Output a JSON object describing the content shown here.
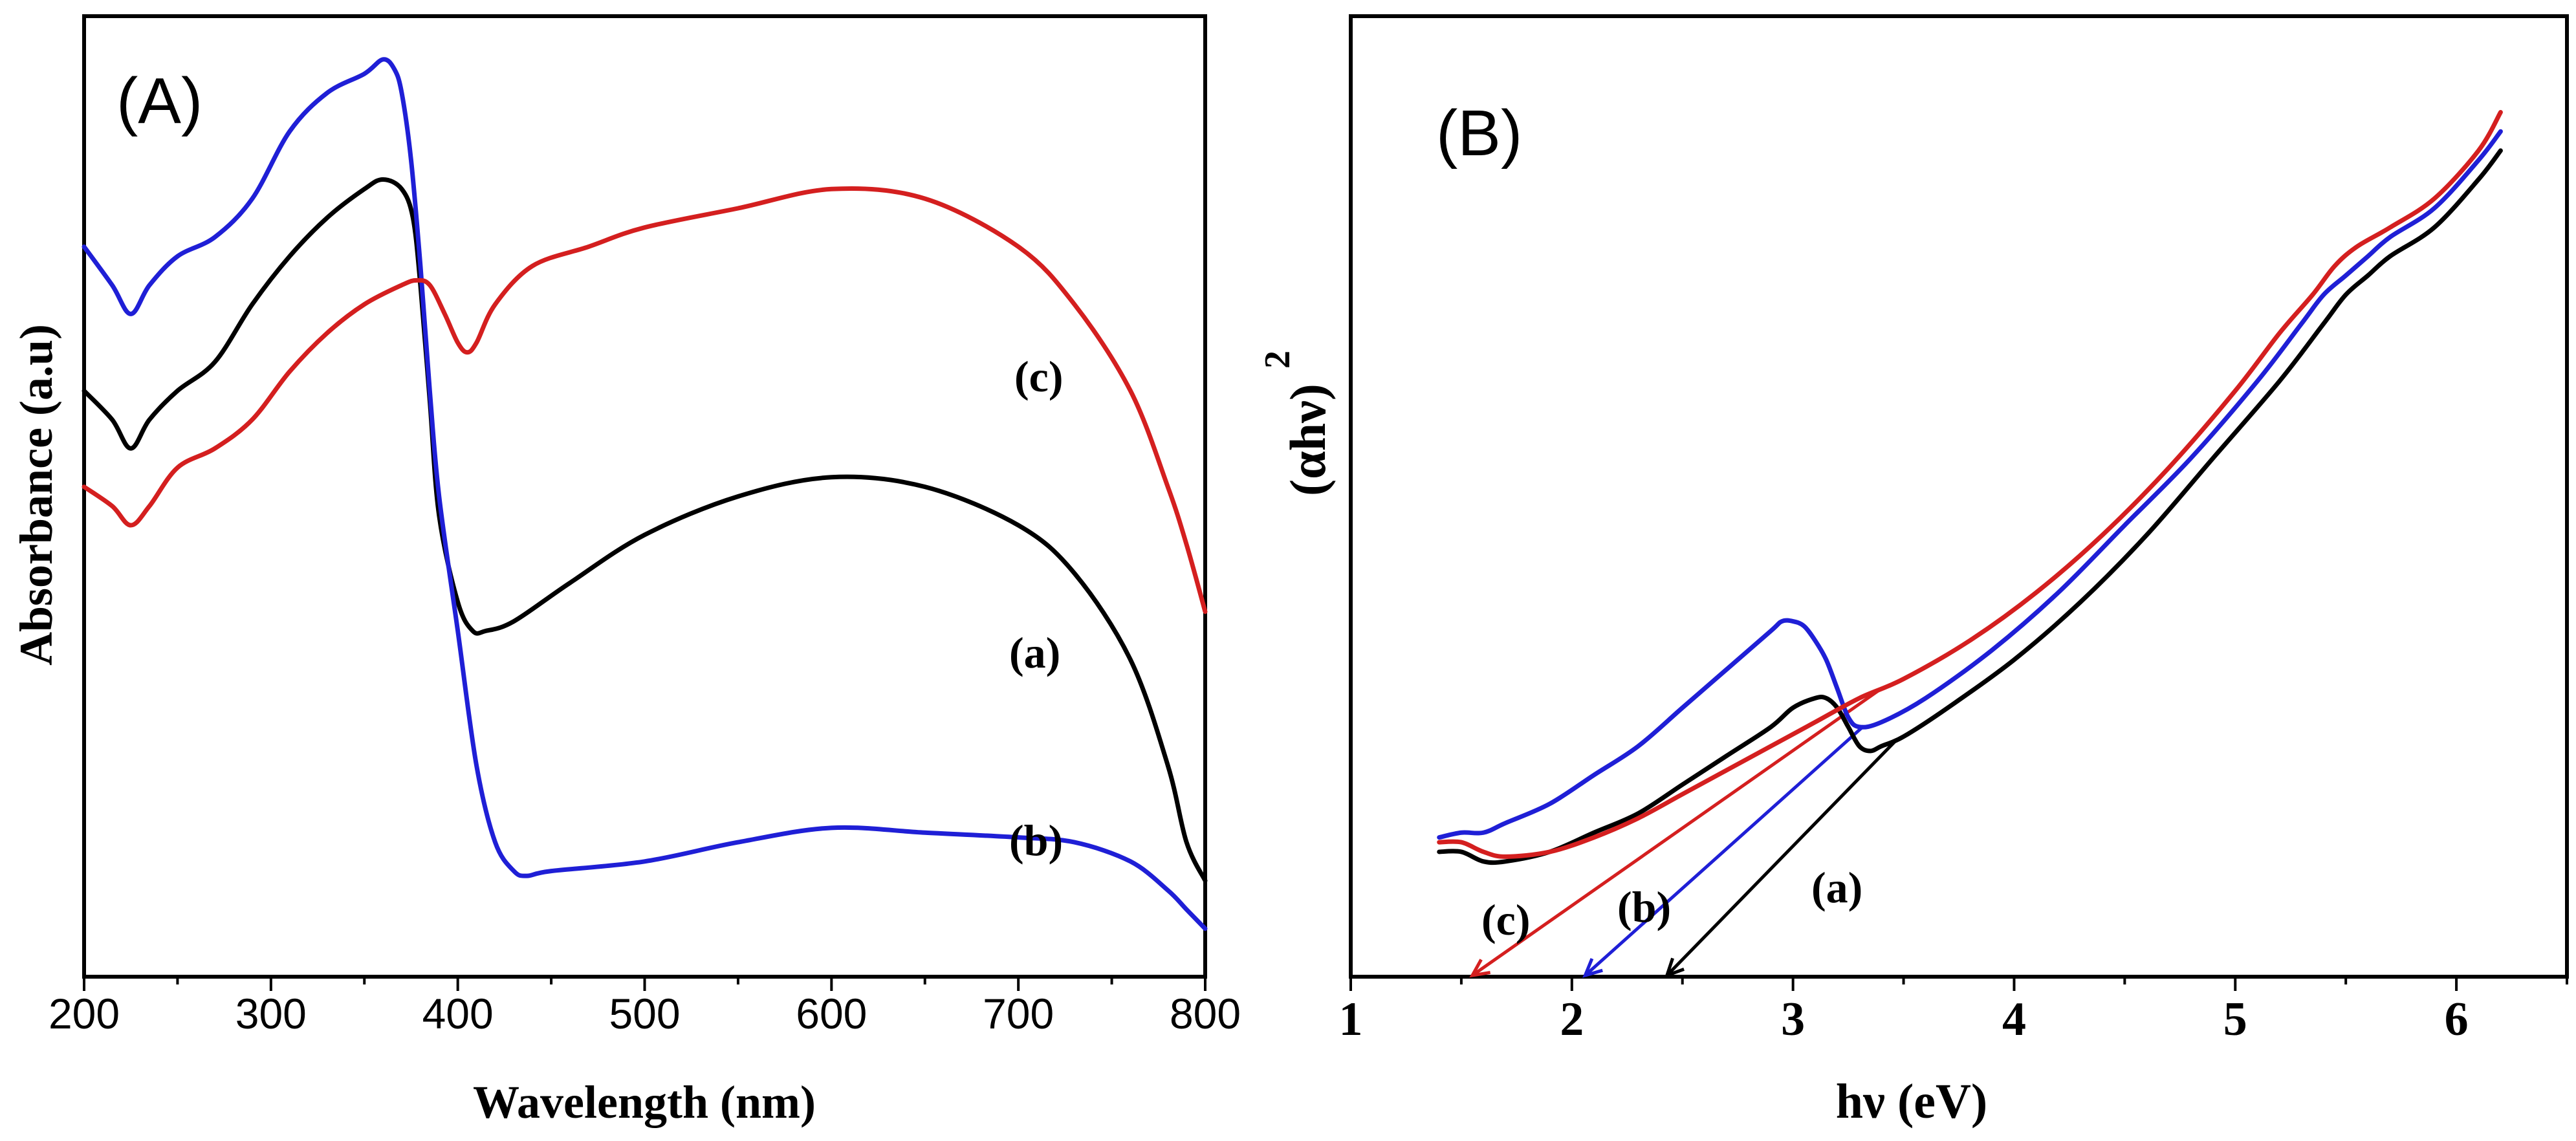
{
  "chart_data": [
    {
      "panel": "(A)",
      "type": "line",
      "xlabel": "Wavelength (nm)",
      "ylabel": "Absorbance (a.u)",
      "xlim": [
        200,
        800
      ],
      "ylim": [
        0,
        1
      ],
      "xticks": [
        "200",
        "300",
        "400",
        "500",
        "600",
        "700",
        "800"
      ],
      "series": [
        {
          "name": "(a)",
          "color": "#000000",
          "x": [
            200,
            215,
            225,
            235,
            250,
            270,
            290,
            310,
            330,
            350,
            360,
            370,
            376,
            380,
            385,
            390,
            400,
            408,
            415,
            430,
            460,
            500,
            550,
            600,
            650,
            700,
            730,
            760,
            780,
            790,
            800
          ],
          "y": [
            0.61,
            0.58,
            0.55,
            0.58,
            0.61,
            0.64,
            0.7,
            0.75,
            0.79,
            0.82,
            0.83,
            0.82,
            0.79,
            0.72,
            0.6,
            0.48,
            0.39,
            0.36,
            0.36,
            0.37,
            0.41,
            0.46,
            0.5,
            0.52,
            0.51,
            0.47,
            0.42,
            0.33,
            0.22,
            0.14,
            0.1
          ]
        },
        {
          "name": "(b)",
          "color": "#1f1fd6",
          "x": [
            200,
            215,
            225,
            235,
            250,
            270,
            290,
            310,
            330,
            350,
            360,
            366,
            370,
            375,
            380,
            385,
            390,
            400,
            410,
            420,
            430,
            437,
            450,
            500,
            550,
            600,
            650,
            700,
            730,
            760,
            780,
            790,
            800
          ],
          "y": [
            0.76,
            0.72,
            0.69,
            0.72,
            0.75,
            0.77,
            0.81,
            0.88,
            0.92,
            0.94,
            0.955,
            0.945,
            0.92,
            0.85,
            0.74,
            0.61,
            0.5,
            0.36,
            0.22,
            0.14,
            0.11,
            0.105,
            0.11,
            0.12,
            0.14,
            0.155,
            0.15,
            0.145,
            0.14,
            0.12,
            0.09,
            0.07,
            0.05
          ]
        },
        {
          "name": "(c)",
          "color": "#d41f1f",
          "x": [
            200,
            215,
            225,
            235,
            250,
            270,
            290,
            310,
            330,
            350,
            370,
            378,
            385,
            393,
            400,
            405,
            410,
            420,
            440,
            470,
            500,
            550,
            600,
            650,
            700,
            730,
            760,
            780,
            790,
            800
          ],
          "y": [
            0.51,
            0.49,
            0.47,
            0.49,
            0.53,
            0.55,
            0.58,
            0.63,
            0.67,
            0.7,
            0.72,
            0.725,
            0.72,
            0.69,
            0.66,
            0.65,
            0.66,
            0.7,
            0.74,
            0.76,
            0.78,
            0.8,
            0.82,
            0.81,
            0.76,
            0.7,
            0.61,
            0.51,
            0.45,
            0.38
          ]
        }
      ]
    },
    {
      "panel": "(B)",
      "type": "line",
      "xlabel": "hν (eV)",
      "ylabel": "(αhν)",
      "ylabel_superscript": "2",
      "xlim": [
        1,
        6.5
      ],
      "ylim": [
        0,
        1
      ],
      "xticks": [
        "1",
        "2",
        "3",
        "4",
        "5",
        "6"
      ],
      "series": [
        {
          "name": "(a)",
          "color": "#000000",
          "x": [
            1.4,
            1.5,
            1.6,
            1.7,
            1.9,
            2.1,
            2.3,
            2.5,
            2.7,
            2.9,
            3.0,
            3.1,
            3.15,
            3.2,
            3.25,
            3.3,
            3.35,
            3.4,
            3.5,
            3.7,
            4.0,
            4.3,
            4.6,
            4.9,
            5.2,
            5.4,
            5.5,
            5.6,
            5.7,
            5.9,
            6.1,
            6.2
          ],
          "y": [
            0.13,
            0.13,
            0.12,
            0.12,
            0.13,
            0.15,
            0.17,
            0.2,
            0.23,
            0.26,
            0.28,
            0.29,
            0.29,
            0.28,
            0.26,
            0.24,
            0.235,
            0.24,
            0.25,
            0.28,
            0.33,
            0.39,
            0.46,
            0.54,
            0.62,
            0.68,
            0.71,
            0.73,
            0.75,
            0.78,
            0.83,
            0.86
          ]
        },
        {
          "name": "(b)",
          "color": "#1f1fd6",
          "x": [
            1.4,
            1.5,
            1.6,
            1.7,
            1.9,
            2.1,
            2.3,
            2.5,
            2.7,
            2.9,
            2.95,
            3.0,
            3.05,
            3.1,
            3.15,
            3.2,
            3.25,
            3.3,
            3.4,
            3.6,
            3.9,
            4.2,
            4.5,
            4.8,
            5.1,
            5.3,
            5.4,
            5.5,
            5.6,
            5.7,
            5.9,
            6.1,
            6.2
          ],
          "y": [
            0.145,
            0.15,
            0.15,
            0.16,
            0.18,
            0.21,
            0.24,
            0.28,
            0.32,
            0.36,
            0.37,
            0.37,
            0.365,
            0.35,
            0.33,
            0.3,
            0.27,
            0.26,
            0.265,
            0.29,
            0.34,
            0.4,
            0.47,
            0.54,
            0.62,
            0.68,
            0.71,
            0.73,
            0.75,
            0.77,
            0.8,
            0.85,
            0.88
          ]
        },
        {
          "name": "(c)",
          "color": "#d41f1f",
          "x": [
            1.4,
            1.5,
            1.6,
            1.7,
            1.9,
            2.1,
            2.3,
            2.5,
            2.7,
            2.9,
            3.1,
            3.3,
            3.5,
            3.8,
            4.1,
            4.4,
            4.7,
            5.0,
            5.2,
            5.35,
            5.45,
            5.55,
            5.7,
            5.9,
            6.1,
            6.2
          ],
          "y": [
            0.14,
            0.14,
            0.13,
            0.125,
            0.13,
            0.145,
            0.165,
            0.19,
            0.215,
            0.24,
            0.265,
            0.29,
            0.31,
            0.35,
            0.4,
            0.46,
            0.53,
            0.61,
            0.67,
            0.71,
            0.74,
            0.76,
            0.78,
            0.81,
            0.86,
            0.9
          ]
        }
      ],
      "tangents": [
        {
          "name": "(a)",
          "color": "#000000",
          "x0": 2.43,
          "x1": 3.47
        },
        {
          "name": "(b)",
          "color": "#1f1fd6",
          "x0": 2.06,
          "x1": 3.32
        },
        {
          "name": "(c)",
          "color": "#d41f1f",
          "x0": 1.55,
          "x1": 3.4
        }
      ]
    }
  ]
}
